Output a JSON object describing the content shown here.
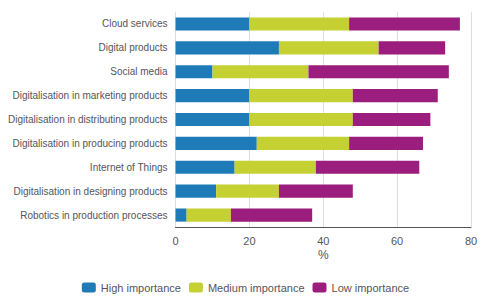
{
  "chart_data": {
    "type": "bar",
    "orientation": "horizontal",
    "stacked": true,
    "categories": [
      "Robotics in production processes",
      "Digitalisation in designing products",
      "Internet of Things",
      "Digitalisation in producing products",
      "Digitalisation in distributing products",
      "Digitalisation in marketing products",
      "Social media",
      "Digital products",
      "Cloud services"
    ],
    "series": [
      {
        "name": "High importance",
        "color": "#1f7bb8",
        "values": [
          3,
          11,
          16,
          22,
          20,
          20,
          10,
          28,
          20
        ]
      },
      {
        "name": "Medium importance",
        "color": "#c5d133",
        "values": [
          12,
          17,
          22,
          25,
          28,
          28,
          26,
          27,
          27
        ]
      },
      {
        "name": "Low importance",
        "color": "#9b1e7f",
        "values": [
          22,
          20,
          28,
          20,
          21,
          23,
          38,
          18,
          30
        ]
      }
    ],
    "xlabel": "%",
    "xlim": [
      0,
      80
    ],
    "xticks": [
      0,
      20,
      40,
      60,
      80
    ],
    "grid": true,
    "legend": "bottom"
  }
}
